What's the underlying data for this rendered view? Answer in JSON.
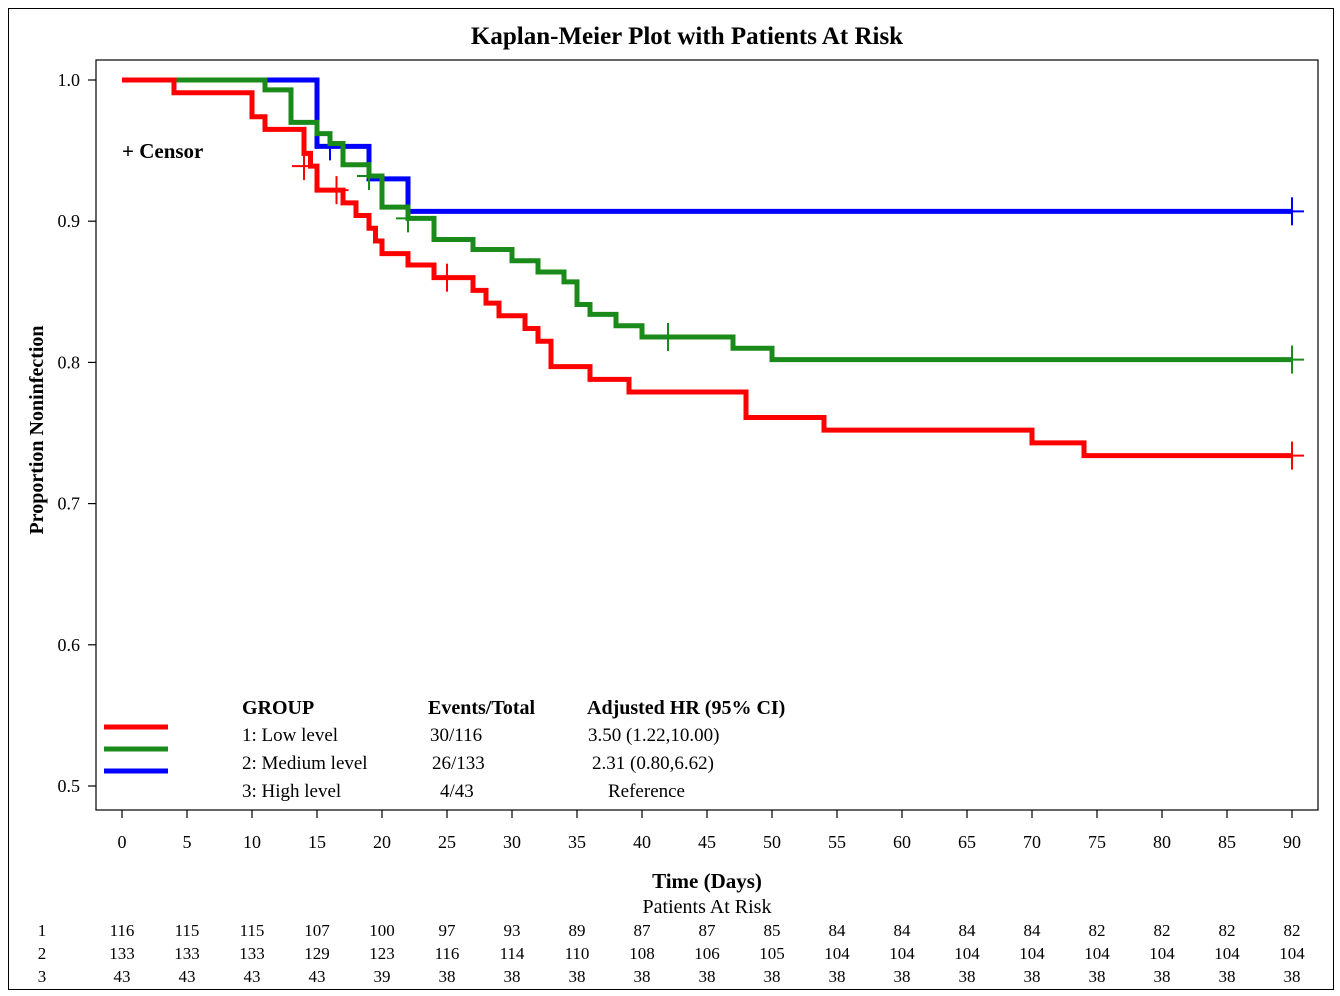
{
  "chart_data": {
    "type": "line",
    "subtype": "kaplan-meier step curve",
    "title": "Kaplan-Meier Plot with Patients At Risk",
    "xlabel": "Time (Days)",
    "ylabel": "Proportion Noninfection",
    "xlim": [
      0,
      90
    ],
    "ylim": [
      0.5,
      1.0
    ],
    "x_ticks": [
      0,
      5,
      10,
      15,
      20,
      25,
      30,
      35,
      40,
      45,
      50,
      55,
      60,
      65,
      70,
      75,
      80,
      85,
      90
    ],
    "y_ticks": [
      0.5,
      0.6,
      0.7,
      0.8,
      0.9,
      1.0
    ],
    "y_tick_labels": [
      "0.5",
      "0.6",
      "0.7",
      "0.8",
      "0.9",
      "1.0"
    ],
    "grid": false,
    "censor_label": "+ Censor",
    "series": [
      {
        "name": "1: Low level",
        "color": "#ff0000",
        "steps": [
          [
            0,
            1.0
          ],
          [
            4,
            0.991
          ],
          [
            10,
            0.974
          ],
          [
            11,
            0.965
          ],
          [
            14,
            0.948
          ],
          [
            14.5,
            0.939
          ],
          [
            15,
            0.922
          ],
          [
            17,
            0.913
          ],
          [
            18,
            0.904
          ],
          [
            19,
            0.895
          ],
          [
            19.5,
            0.886
          ],
          [
            20,
            0.877
          ],
          [
            22,
            0.869
          ],
          [
            24,
            0.86
          ],
          [
            27,
            0.851
          ],
          [
            28,
            0.842
          ],
          [
            29,
            0.833
          ],
          [
            31,
            0.824
          ],
          [
            32,
            0.815
          ],
          [
            33,
            0.797
          ],
          [
            36,
            0.788
          ],
          [
            39,
            0.779
          ],
          [
            48,
            0.761
          ],
          [
            54,
            0.752
          ],
          [
            70,
            0.743
          ],
          [
            74,
            0.734
          ],
          [
            90,
            0.734
          ]
        ],
        "censors": [
          [
            14,
            0.939
          ],
          [
            16.5,
            0.922
          ],
          [
            25,
            0.86
          ],
          [
            90,
            0.734
          ]
        ]
      },
      {
        "name": "2: Medium level",
        "color": "#1a8a1a",
        "steps": [
          [
            0,
            1.0
          ],
          [
            11,
            0.993
          ],
          [
            13,
            0.97
          ],
          [
            15,
            0.962
          ],
          [
            16,
            0.955
          ],
          [
            17,
            0.94
          ],
          [
            19,
            0.932
          ],
          [
            20,
            0.91
          ],
          [
            22,
            0.902
          ],
          [
            24,
            0.887
          ],
          [
            27,
            0.88
          ],
          [
            30,
            0.872
          ],
          [
            32,
            0.864
          ],
          [
            34,
            0.857
          ],
          [
            35,
            0.841
          ],
          [
            36,
            0.834
          ],
          [
            38,
            0.826
          ],
          [
            40,
            0.818
          ],
          [
            47,
            0.81
          ],
          [
            50,
            0.802
          ],
          [
            90,
            0.802
          ]
        ],
        "censors": [
          [
            19,
            0.932
          ],
          [
            22,
            0.902
          ],
          [
            42,
            0.818
          ],
          [
            90,
            0.802
          ]
        ]
      },
      {
        "name": "3: High level",
        "color": "#0000ff",
        "steps": [
          [
            0,
            1.0
          ],
          [
            15,
            0.953
          ],
          [
            19,
            0.93
          ],
          [
            22,
            0.907
          ],
          [
            90,
            0.907
          ]
        ],
        "censors": [
          [
            16,
            0.953
          ],
          [
            90,
            0.907
          ]
        ]
      }
    ],
    "legend": {
      "placement": "bottom-left",
      "headers": [
        "GROUP",
        "Events/Total",
        "Adjusted  HR (95% CI)"
      ],
      "rows": [
        {
          "group": "1: Low level",
          "events": "30/116",
          "hr": "3.50 (1.22,10.00)"
        },
        {
          "group": "2: Medium  level",
          "events": "26/133",
          "hr": "2.31 (0.80,6.62)"
        },
        {
          "group": "3: High  level",
          "events": "4/43",
          "hr": "Reference"
        }
      ]
    },
    "risk_table": {
      "title": "Patients At Risk",
      "rows": [
        {
          "label": "1",
          "values": [
            116,
            115,
            115,
            107,
            100,
            97,
            93,
            89,
            87,
            87,
            85,
            84,
            84,
            84,
            84,
            82,
            82,
            82,
            82
          ]
        },
        {
          "label": "2",
          "values": [
            133,
            133,
            133,
            129,
            123,
            116,
            114,
            110,
            108,
            106,
            105,
            104,
            104,
            104,
            104,
            104,
            104,
            104,
            104
          ]
        },
        {
          "label": "3",
          "values": [
            43,
            43,
            43,
            43,
            39,
            38,
            38,
            38,
            38,
            38,
            38,
            38,
            38,
            38,
            38,
            38,
            38,
            38,
            38
          ]
        }
      ]
    }
  }
}
